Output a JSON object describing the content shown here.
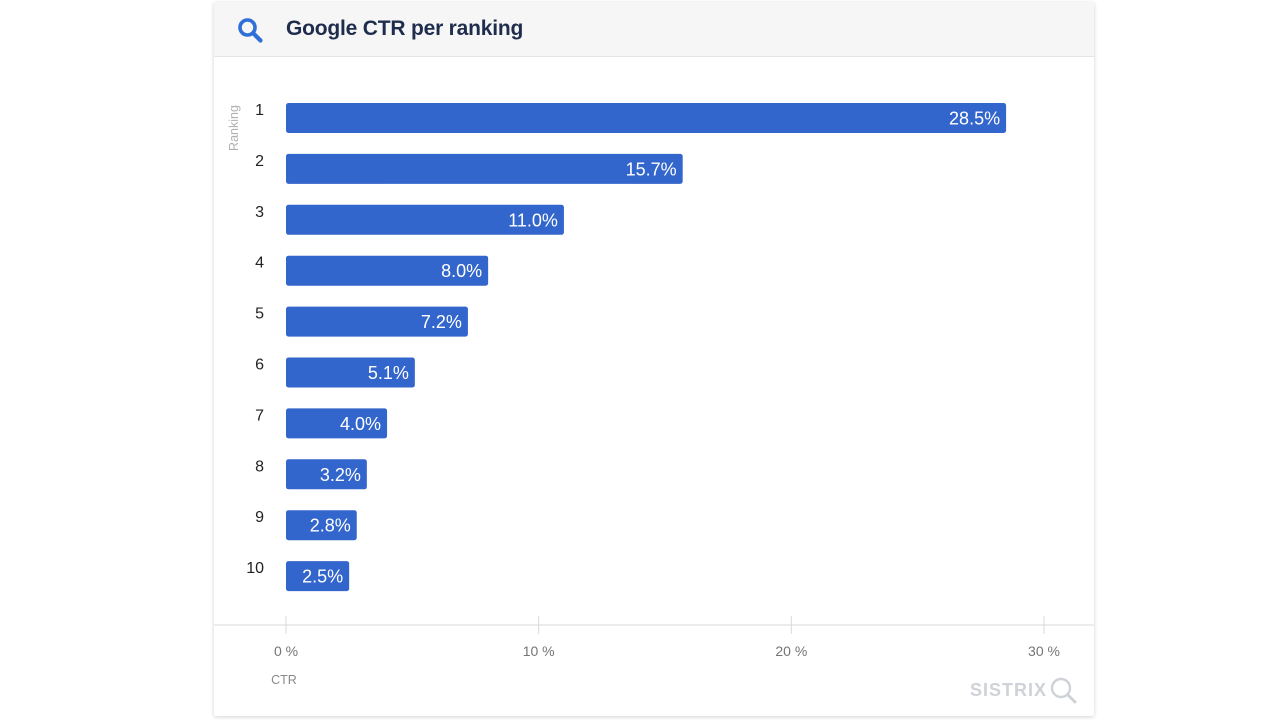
{
  "header": {
    "title": "Google CTR per ranking",
    "icon": "search-icon"
  },
  "colors": {
    "bar": "#3366cc",
    "bar_label": "#ffffff",
    "axis_text": "#757575",
    "category_text": "#222222",
    "gridline": "#d9d9d9"
  },
  "watermark": {
    "text": "SISTRIX",
    "icon": "magnifier-icon"
  },
  "chart_data": {
    "type": "bar",
    "orientation": "horizontal",
    "title": "Google CTR per ranking",
    "xlabel": "CTR",
    "ylabel": "Ranking",
    "categories": [
      "1",
      "2",
      "3",
      "4",
      "5",
      "6",
      "7",
      "8",
      "9",
      "10"
    ],
    "values": [
      28.5,
      15.7,
      11.0,
      8.0,
      7.2,
      5.1,
      4.0,
      3.2,
      2.8,
      2.5
    ],
    "value_labels": [
      "28.5%",
      "15.7%",
      "11.0%",
      "8.0%",
      "7.2%",
      "5.1%",
      "4.0%",
      "3.2%",
      "2.8%",
      "2.5%"
    ],
    "xlim": [
      0,
      30
    ],
    "xticks": [
      0,
      10,
      20,
      30
    ],
    "xtick_labels": [
      "0 %",
      "10 %",
      "20 %",
      "30 %"
    ]
  }
}
